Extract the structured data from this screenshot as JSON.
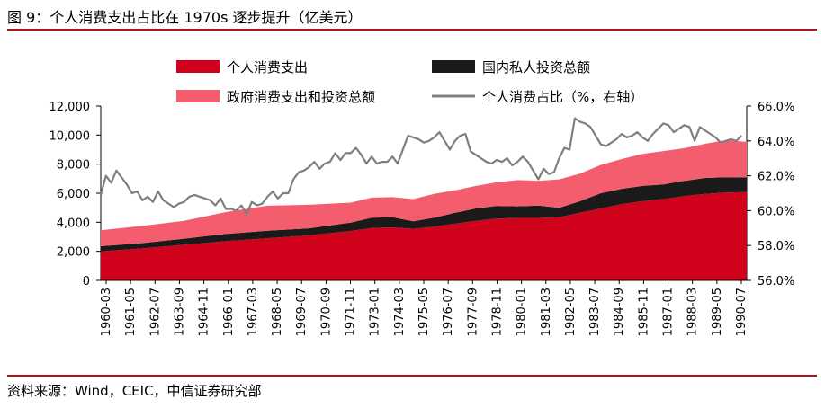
{
  "title": "图 9：个人消费支出占比在 1970s 逐步提升（亿美元）",
  "source": "资料来源：Wind，CEIC，中信证券研究部",
  "colors": {
    "consumption": "#d0021b",
    "investment": "#1a1a1a",
    "gov_and_invest": "#f45d6e",
    "share_line": "#7f7f7f",
    "brand_rule": "#b0111b"
  },
  "chart_data": {
    "type": "area",
    "title": "",
    "legend": [
      "个人消费支出",
      "国内私人投资总额",
      "政府消费支出和投资总额",
      "个人消费占比（%，右轴）"
    ],
    "legend_position": "top",
    "x_tick_labels": [
      "1960-03",
      "1961-05",
      "1962-07",
      "1963-09",
      "1964-11",
      "1966-01",
      "1967-03",
      "1968-05",
      "1969-07",
      "1970-09",
      "1971-11",
      "1973-01",
      "1974-03",
      "1975-05",
      "1976-07",
      "1977-09",
      "1978-11",
      "1980-01",
      "1981-03",
      "1982-05",
      "1983-07",
      "1984-09",
      "1985-11",
      "1987-01",
      "1988-03",
      "1989-05",
      "1990-07"
    ],
    "y_left": {
      "ylim": [
        0,
        12000
      ],
      "ticks": [
        "0",
        "2,000",
        "4,000",
        "6,000",
        "8,000",
        "10,000",
        "12,000"
      ]
    },
    "y_right": {
      "ylim": [
        56,
        66
      ],
      "ticks": [
        "56.0%",
        "58.0%",
        "60.0%",
        "62.0%",
        "64.0%",
        "66.0%"
      ]
    },
    "x_range": [
      1960.0,
      1991.0
    ],
    "series": [
      {
        "name": "个人消费支出",
        "kind": "stacked-area",
        "x": [
          1960.0,
          1962.0,
          1964.0,
          1966.0,
          1968.0,
          1970.0,
          1972.0,
          1973.0,
          1974.0,
          1975.0,
          1976.0,
          1977.0,
          1978.0,
          1979.0,
          1980.0,
          1981.0,
          1982.0,
          1983.0,
          1984.0,
          1985.0,
          1986.0,
          1987.0,
          1988.0,
          1989.0,
          1990.0,
          1991.0
        ],
        "values": [
          2000,
          2200,
          2450,
          2700,
          2900,
          3100,
          3400,
          3600,
          3650,
          3550,
          3700,
          3900,
          4100,
          4250,
          4300,
          4300,
          4350,
          4650,
          4950,
          5250,
          5450,
          5600,
          5800,
          5950,
          6050,
          6080
        ]
      },
      {
        "name": "国内私人投资总额",
        "kind": "stacked-area",
        "x": [
          1960.0,
          1962.0,
          1964.0,
          1966.0,
          1968.0,
          1970.0,
          1972.0,
          1973.0,
          1974.0,
          1975.0,
          1976.0,
          1977.0,
          1978.0,
          1979.0,
          1980.0,
          1981.0,
          1982.0,
          1983.0,
          1984.0,
          1985.0,
          1986.0,
          1987.0,
          1988.0,
          1989.0,
          1990.0,
          1991.0
        ],
        "values": [
          350,
          370,
          420,
          500,
          520,
          480,
          580,
          720,
          700,
          520,
          620,
          750,
          850,
          880,
          800,
          850,
          650,
          800,
          1050,
          1050,
          1050,
          1000,
          1050,
          1100,
          1050,
          1000
        ]
      },
      {
        "name": "政府消费支出和投资总额",
        "kind": "stacked-area",
        "x": [
          1960.0,
          1962.0,
          1964.0,
          1966.0,
          1968.0,
          1970.0,
          1972.0,
          1973.0,
          1974.0,
          1975.0,
          1976.0,
          1977.0,
          1978.0,
          1979.0,
          1980.0,
          1981.0,
          1982.0,
          1983.0,
          1984.0,
          1985.0,
          1986.0,
          1987.0,
          1988.0,
          1989.0,
          1990.0,
          1991.0
        ],
        "values": [
          1100,
          1180,
          1230,
          1500,
          1720,
          1620,
          1370,
          1380,
          1380,
          1530,
          1630,
          1550,
          1550,
          1620,
          1800,
          1700,
          1950,
          1900,
          1950,
          2050,
          2200,
          2300,
          2250,
          2350,
          2550,
          2450
        ]
      },
      {
        "name": "个人消费占比（%，右轴）",
        "kind": "line",
        "axis": "right",
        "x": [
          1960.0,
          1960.25,
          1960.5,
          1960.75,
          1961.0,
          1961.25,
          1961.5,
          1961.75,
          1962.0,
          1962.25,
          1962.5,
          1962.75,
          1963.0,
          1963.25,
          1963.5,
          1963.75,
          1964.0,
          1964.25,
          1964.5,
          1964.75,
          1965.0,
          1965.25,
          1965.5,
          1965.75,
          1966.0,
          1966.25,
          1966.5,
          1966.75,
          1967.0,
          1967.25,
          1967.5,
          1967.75,
          1968.0,
          1968.25,
          1968.5,
          1968.75,
          1969.0,
          1969.25,
          1969.5,
          1969.75,
          1970.0,
          1970.25,
          1970.5,
          1970.75,
          1971.0,
          1971.25,
          1971.5,
          1971.75,
          1972.0,
          1972.25,
          1972.5,
          1972.75,
          1973.0,
          1973.25,
          1973.5,
          1973.75,
          1974.0,
          1974.25,
          1974.5,
          1974.75,
          1975.0,
          1975.25,
          1975.5,
          1975.75,
          1976.0,
          1976.25,
          1976.5,
          1976.75,
          1977.0,
          1977.25,
          1977.5,
          1977.75,
          1978.0,
          1978.25,
          1978.5,
          1978.75,
          1979.0,
          1979.25,
          1979.5,
          1979.75,
          1980.0,
          1980.25,
          1980.5,
          1980.75,
          1981.0,
          1981.25,
          1981.5,
          1981.75,
          1982.0,
          1982.25,
          1982.5,
          1982.75,
          1983.0,
          1983.25,
          1983.5,
          1983.75,
          1984.0,
          1984.25,
          1984.5,
          1984.75,
          1985.0,
          1985.25,
          1985.5,
          1985.75,
          1986.0,
          1986.25,
          1986.5,
          1986.75,
          1987.0,
          1987.25,
          1987.5,
          1987.75,
          1988.0,
          1988.25,
          1988.5,
          1988.75,
          1989.0,
          1989.25,
          1989.5,
          1989.75,
          1990.0,
          1990.25,
          1990.5,
          1990.75
        ],
        "values": [
          60.9,
          62.0,
          61.6,
          62.3,
          61.9,
          61.5,
          61.0,
          61.1,
          60.6,
          60.8,
          60.5,
          61.1,
          60.6,
          60.4,
          60.2,
          60.4,
          60.5,
          60.8,
          60.9,
          60.8,
          60.7,
          60.6,
          60.3,
          60.7,
          60.1,
          60.1,
          60.0,
          60.3,
          59.8,
          60.5,
          60.3,
          60.4,
          60.8,
          61.1,
          60.7,
          61.0,
          61.0,
          61.8,
          62.2,
          62.3,
          62.5,
          62.8,
          62.4,
          62.7,
          62.8,
          63.3,
          62.9,
          63.3,
          63.3,
          63.6,
          63.2,
          62.7,
          63.1,
          62.7,
          62.8,
          62.8,
          63.1,
          62.7,
          63.5,
          64.3,
          64.2,
          64.1,
          63.9,
          64.0,
          64.2,
          64.5,
          64.0,
          63.5,
          64.0,
          64.3,
          64.4,
          63.4,
          63.2,
          63.0,
          62.8,
          62.7,
          62.9,
          62.8,
          63.0,
          62.6,
          62.8,
          63.1,
          62.8,
          62.3,
          61.8,
          62.4,
          62.1,
          62.2,
          63.0,
          63.6,
          63.5,
          65.3,
          65.1,
          65.0,
          64.8,
          64.3,
          63.8,
          63.7,
          63.9,
          64.1,
          64.4,
          64.2,
          64.3,
          64.5,
          64.2,
          64.0,
          64.4,
          64.7,
          65.0,
          64.9,
          64.5,
          64.7,
          64.9,
          64.8,
          64.0,
          64.8,
          64.6,
          64.4,
          64.2,
          63.9,
          64.0,
          64.1,
          64.0,
          64.3
        ]
      }
    ]
  }
}
